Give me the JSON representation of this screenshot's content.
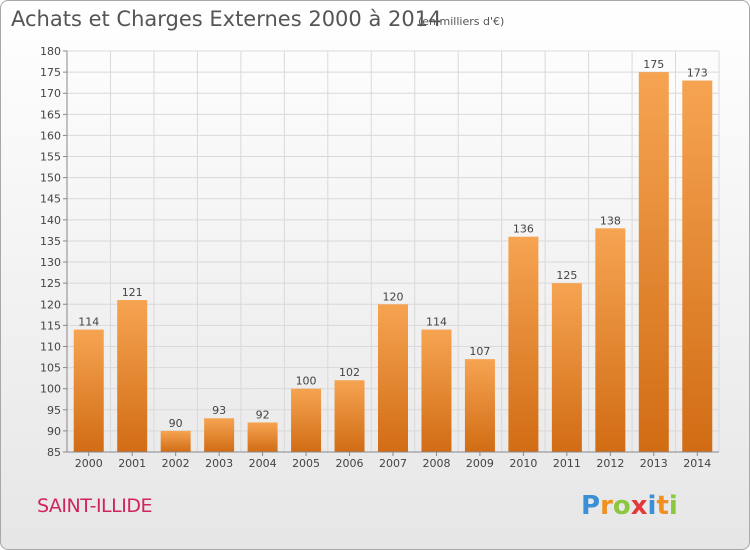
{
  "title": "Achats et Charges Externes 2000 à 2014",
  "subtitle": "(en milliers d'€)",
  "town": "SAINT-ILLIDE",
  "logo": {
    "text": "Proxiti",
    "letters": [
      {
        "ch": "P",
        "color": "#3a8fd6"
      },
      {
        "ch": "r",
        "color": "#f0901e"
      },
      {
        "ch": "o",
        "color": "#8dc63f"
      },
      {
        "ch": "x",
        "color": "#e23a3a"
      },
      {
        "ch": "i",
        "color": "#3a8fd6"
      },
      {
        "ch": "t",
        "color": "#f0901e"
      },
      {
        "ch": "i",
        "color": "#8dc63f"
      }
    ]
  },
  "colors": {
    "bar_light": "#f6a452",
    "bar_dark": "#d16c14",
    "grid": "#d9d9d9",
    "town": "#d0245c"
  },
  "chart_data": {
    "type": "bar",
    "categories": [
      "2000",
      "2001",
      "2002",
      "2003",
      "2004",
      "2005",
      "2006",
      "2007",
      "2008",
      "2009",
      "2010",
      "2011",
      "2012",
      "2013",
      "2014"
    ],
    "values": [
      114,
      121,
      90,
      93,
      92,
      100,
      102,
      120,
      114,
      107,
      136,
      125,
      138,
      175,
      173
    ],
    "ylim": [
      85,
      180
    ],
    "ytick_step": 5,
    "grid": true,
    "data_labels": true
  }
}
